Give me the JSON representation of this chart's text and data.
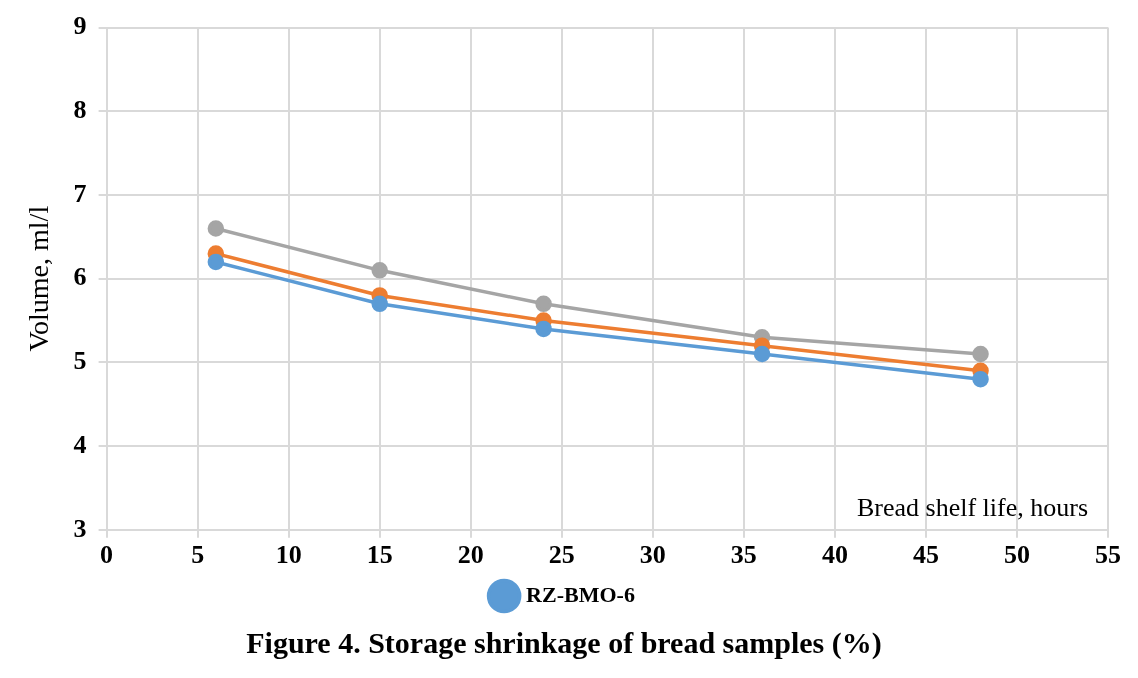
{
  "chart_data": {
    "type": "line",
    "title": "Figure 4. Storage shrinkage of bread samples (%)",
    "xlabel": "Bread shelf life, hours",
    "ylabel": "Volume, ml/l",
    "x": [
      6,
      15,
      24,
      36,
      48
    ],
    "series": [
      {
        "name": "RZ-BMO-6",
        "color": "#5b9bd5",
        "values": [
          6.2,
          5.7,
          5.4,
          5.1,
          4.8
        ]
      },
      {
        "color": "#ed7d31",
        "values": [
          6.3,
          5.8,
          5.5,
          5.2,
          4.9
        ]
      },
      {
        "color": "#a5a5a5",
        "values": [
          6.6,
          6.1,
          5.7,
          5.3,
          5.1
        ]
      }
    ],
    "xlim": [
      0,
      55
    ],
    "xticks": [
      0,
      5,
      10,
      15,
      20,
      25,
      30,
      35,
      40,
      45,
      50,
      55
    ],
    "ylim": [
      3,
      9
    ],
    "yticks": [
      3,
      4,
      5,
      6,
      7,
      8,
      9
    ],
    "grid": true,
    "legend": "bottom",
    "marker": "circle",
    "line_style": "solid"
  }
}
